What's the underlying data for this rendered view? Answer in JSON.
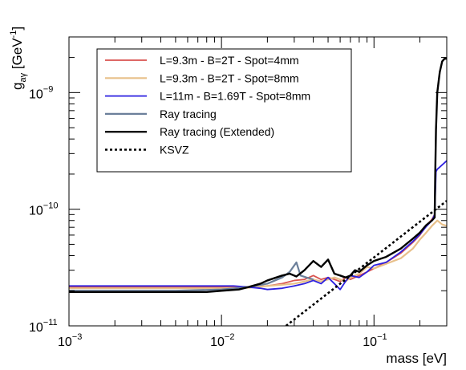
{
  "chart_data": {
    "type": "line",
    "xlabel": "mass [eV]",
    "ylabel": "g_aγ [GeV^-1]",
    "x_scale": "log",
    "y_scale": "log",
    "xlim": [
      0.001,
      0.3
    ],
    "ylim": [
      1e-11,
      3e-09
    ],
    "x_ticks": [
      {
        "value": 0.001,
        "mant": "10",
        "exp": "−3"
      },
      {
        "value": 0.01,
        "mant": "10",
        "exp": "−2"
      },
      {
        "value": 0.1,
        "mant": "10",
        "exp": "−1"
      }
    ],
    "y_ticks": [
      {
        "value": 1e-11,
        "mant": "10",
        "exp": "−11"
      },
      {
        "value": 1e-10,
        "mant": "10",
        "exp": "−10"
      },
      {
        "value": 1e-09,
        "mant": "10",
        "exp": "−9"
      }
    ],
    "legend_position": "top-left",
    "grid": false,
    "series": [
      {
        "name": "L=9.3m - B=2T - Spot=4mm",
        "color": "#d9534f",
        "style": "solid",
        "width": 1.8,
        "x": [
          0.001,
          0.002,
          0.005,
          0.01,
          0.015,
          0.02,
          0.025,
          0.03,
          0.035,
          0.04,
          0.045,
          0.05,
          0.055,
          0.06,
          0.065,
          0.07,
          0.08,
          0.09,
          0.1,
          0.12,
          0.15,
          0.18,
          0.2,
          0.22,
          0.24,
          0.25
        ],
        "y": [
          2.15e-11,
          2.15e-11,
          2.15e-11,
          2.15e-11,
          2.15e-11,
          2.2e-11,
          2.3e-11,
          2.45e-11,
          2.5e-11,
          2.7e-11,
          2.5e-11,
          2.6e-11,
          2.5e-11,
          2.4e-11,
          2.6e-11,
          2.5e-11,
          2.7e-11,
          2.9e-11,
          3.1e-11,
          3.5e-11,
          4.2e-11,
          5.2e-11,
          6e-11,
          7.2e-11,
          8.2e-11,
          9e-11
        ]
      },
      {
        "name": "L=9.3m - B=2T - Spot=8mm",
        "color": "#e8c08a",
        "style": "solid",
        "width": 2.2,
        "x": [
          0.001,
          0.002,
          0.005,
          0.01,
          0.015,
          0.02,
          0.025,
          0.03,
          0.035,
          0.04,
          0.045,
          0.05,
          0.055,
          0.06,
          0.065,
          0.07,
          0.08,
          0.09,
          0.1,
          0.12,
          0.15,
          0.18,
          0.2,
          0.22,
          0.24,
          0.26,
          0.28,
          0.3
        ],
        "y": [
          2.1e-11,
          2.1e-11,
          2.1e-11,
          2.1e-11,
          2.12e-11,
          2.2e-11,
          2.25e-11,
          2.3e-11,
          2.4e-11,
          2.5e-11,
          2.4e-11,
          2.5e-11,
          2.6e-11,
          2.5e-11,
          2.4e-11,
          2.6e-11,
          2.8e-11,
          3.2e-11,
          3.1e-11,
          3.4e-11,
          3.8e-11,
          4.6e-11,
          5.5e-11,
          6.3e-11,
          7.2e-11,
          8e-11,
          7.4e-11,
          7.2e-11
        ]
      },
      {
        "name": "L=11m - B=1.69T - Spot=8mm",
        "color": "#2d20e0",
        "style": "solid",
        "width": 1.8,
        "x": [
          0.001,
          0.002,
          0.005,
          0.01,
          0.012,
          0.015,
          0.018,
          0.02,
          0.025,
          0.03,
          0.035,
          0.04,
          0.045,
          0.05,
          0.055,
          0.06,
          0.065,
          0.07,
          0.08,
          0.09,
          0.1,
          0.12,
          0.15,
          0.18,
          0.2,
          0.22,
          0.24,
          0.25,
          0.255,
          0.26,
          0.28,
          0.3
        ],
        "y": [
          2.2e-11,
          2.2e-11,
          2.2e-11,
          2.2e-11,
          2.2e-11,
          2.15e-11,
          2.1e-11,
          2.05e-11,
          2.1e-11,
          2.2e-11,
          2.3e-11,
          2.45e-11,
          2.3e-11,
          2.6e-11,
          2.3e-11,
          2.05e-11,
          2.4e-11,
          2.7e-11,
          2.6e-11,
          2.9e-11,
          3.3e-11,
          3.5e-11,
          4.3e-11,
          5.3e-11,
          6.1e-11,
          7.1e-11,
          8e-11,
          9e-11,
          2.1e-10,
          2.2e-10,
          2.4e-10,
          2.6e-10
        ]
      },
      {
        "name": "Ray tracing",
        "color": "#6b7f9a",
        "style": "solid",
        "width": 2.2,
        "x": [
          0.001,
          0.005,
          0.01,
          0.015,
          0.02,
          0.025,
          0.028,
          0.031,
          0.033,
          0.036,
          0.04
        ],
        "y": [
          2e-11,
          2e-11,
          2.05e-11,
          2.15e-11,
          2.3e-11,
          2.6e-11,
          2.9e-11,
          3.5e-11,
          2.7e-11,
          2.6e-11,
          2.5e-11
        ]
      },
      {
        "name": "Ray tracing (Extended)",
        "color": "#000000",
        "style": "solid",
        "width": 2.4,
        "x": [
          0.001,
          0.002,
          0.005,
          0.008,
          0.01,
          0.013,
          0.015,
          0.018,
          0.02,
          0.025,
          0.028,
          0.031,
          0.035,
          0.04,
          0.045,
          0.05,
          0.055,
          0.06,
          0.065,
          0.07,
          0.075,
          0.08,
          0.09,
          0.1,
          0.12,
          0.15,
          0.18,
          0.2,
          0.22,
          0.24,
          0.25,
          0.252,
          0.255,
          0.26,
          0.27,
          0.28,
          0.29,
          0.3
        ],
        "y": [
          1.95e-11,
          1.95e-11,
          1.95e-11,
          1.95e-11,
          2e-11,
          2.05e-11,
          2.15e-11,
          2.3e-11,
          2.45e-11,
          2.7e-11,
          2.8e-11,
          2.65e-11,
          3e-11,
          3.6e-11,
          3.2e-11,
          3.7e-11,
          2.8e-11,
          2.7e-11,
          2.6e-11,
          2.7e-11,
          3e-11,
          2.9e-11,
          3.3e-11,
          3.6e-11,
          3.9e-11,
          4.6e-11,
          5.6e-11,
          6.3e-11,
          7.3e-11,
          8e-11,
          8.5e-11,
          1.9e-10,
          4.8e-10,
          1e-09,
          1.5e-09,
          1.85e-09,
          1.95e-09,
          1.95e-09
        ]
      },
      {
        "name": "KSVZ",
        "color": "#000000",
        "style": "dotted",
        "width": 2.6,
        "x": [
          0.0265,
          0.3
        ],
        "y": [
          1e-11,
          1.18e-10
        ]
      }
    ]
  }
}
